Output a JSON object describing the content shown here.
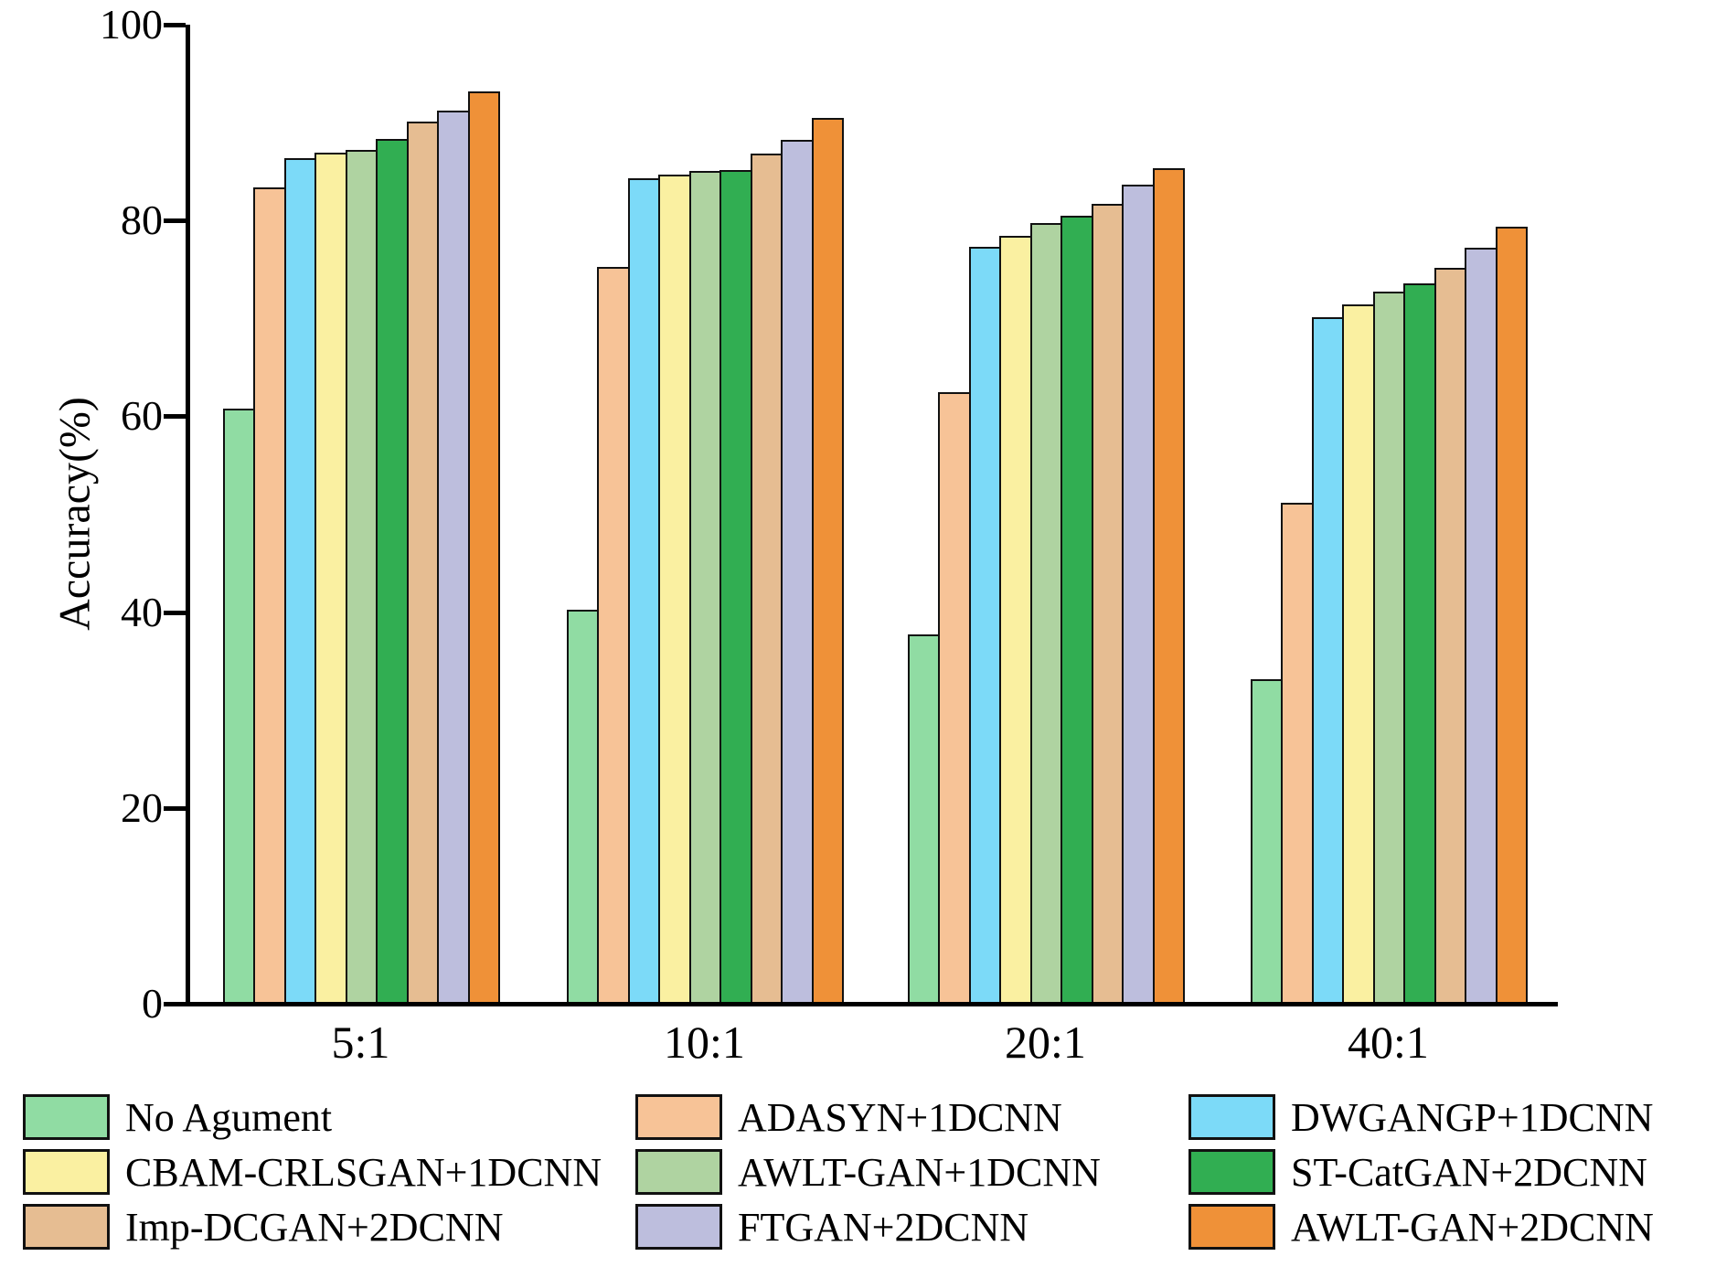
{
  "chart_data": {
    "type": "bar",
    "title": "",
    "xlabel": "",
    "ylabel": "Accuracy(%)",
    "ylim": [
      0,
      100
    ],
    "yticks": [
      "0",
      "20",
      "40",
      "60",
      "80",
      "100"
    ],
    "ytick_values": [
      0,
      20,
      40,
      60,
      80,
      100
    ],
    "grid": false,
    "legend_position": "bottom",
    "legend_columns": 3,
    "categories": [
      "5:1",
      "10:1",
      "20:1",
      "40:1"
    ],
    "series": [
      {
        "name": "No Agument",
        "color": "#90DCA3",
        "values": [
          60.8,
          40.2,
          37.7,
          33.1
        ]
      },
      {
        "name": "ADASYN+1DCNN",
        "color": "#F7C397",
        "values": [
          83.4,
          75.3,
          62.5,
          51.2
        ]
      },
      {
        "name": "DWGANGP+1DCNN",
        "color": "#7CDAF8",
        "values": [
          86.4,
          84.3,
          77.3,
          70.1
        ]
      },
      {
        "name": "CBAM-CRLSGAN+1DCNN",
        "color": "#FAF0A1",
        "values": [
          86.9,
          84.7,
          78.4,
          71.4
        ]
      },
      {
        "name": "AWLT-GAN+1DCNN",
        "color": "#AFD3A1",
        "values": [
          87.2,
          85.1,
          79.7,
          72.7
        ]
      },
      {
        "name": "ST-CatGAN+2DCNN",
        "color": "#31AE52",
        "values": [
          88.3,
          85.2,
          80.5,
          73.6
        ]
      },
      {
        "name": "Imp-DCGAN+2DCNN",
        "color": "#E6BD92",
        "values": [
          90.1,
          86.8,
          81.7,
          75.2
        ]
      },
      {
        "name": "FTGAN+2DCNN",
        "color": "#BDBEDD",
        "values": [
          91.2,
          88.2,
          83.7,
          77.2
        ]
      },
      {
        "name": "AWLT-GAN+2DCNN",
        "color": "#EF9138",
        "values": [
          93.2,
          90.5,
          85.3,
          79.4
        ]
      }
    ],
    "axis_color": "#000000"
  }
}
